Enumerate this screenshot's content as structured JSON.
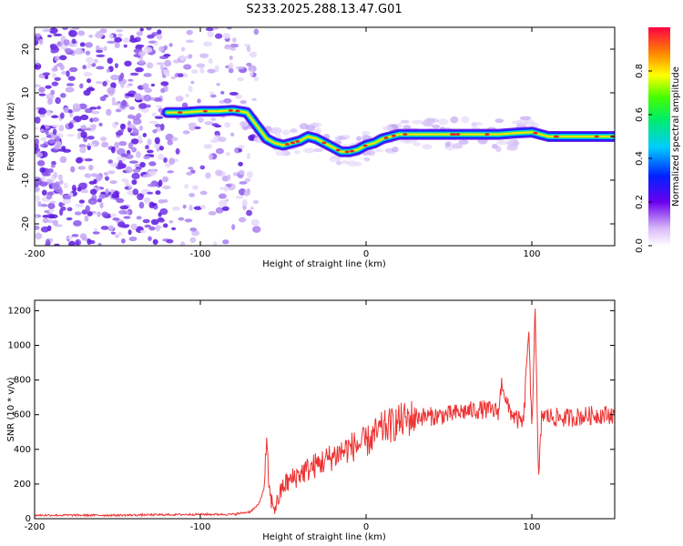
{
  "figure_title": "S233.2025.288.13.47.G01",
  "chart_data": [
    {
      "type": "heatmap",
      "title": "",
      "xlabel": "Height of straight line (km)",
      "ylabel": "Frequency (Hz)",
      "xlim": [
        -200,
        150
      ],
      "ylim": [
        -25,
        25
      ],
      "xticks": [
        -200,
        -100,
        0,
        100
      ],
      "yticks": [
        -20,
        -10,
        0,
        10,
        20
      ],
      "colorbar": {
        "label": "Normalized spectral amplitude",
        "range": [
          0,
          1
        ],
        "ticks": [
          0.0,
          0.2,
          0.4,
          0.6,
          0.8
        ]
      },
      "ridge": {
        "description": "dominant frequency track versus height",
        "height_km": [
          -120,
          -110,
          -100,
          -90,
          -80,
          -72,
          -66,
          -60,
          -55,
          -50,
          -45,
          -40,
          -35,
          -30,
          -25,
          -20,
          -15,
          -10,
          -5,
          0,
          5,
          10,
          15,
          20,
          30,
          40,
          50,
          60,
          70,
          80,
          90,
          100,
          110,
          120,
          130,
          140,
          150
        ],
        "frequency_hz": [
          5.5,
          5.5,
          5.8,
          5.8,
          6.0,
          5.5,
          2.5,
          -0.5,
          -1.5,
          -2.0,
          -1.5,
          -1.0,
          0.0,
          -0.5,
          -1.5,
          -2.5,
          -3.5,
          -3.5,
          -3.0,
          -2.0,
          -1.5,
          -0.5,
          0.0,
          0.5,
          0.5,
          0.5,
          0.5,
          0.5,
          0.5,
          0.5,
          0.8,
          1.0,
          0.0,
          0.0,
          0.0,
          0.0,
          0.0
        ]
      }
    },
    {
      "type": "line",
      "title": "",
      "xlabel": "Height of straight line (km)",
      "ylabel": "SNR (10 * v/v)",
      "xlim": [
        -200,
        150
      ],
      "ylim": [
        0,
        1260
      ],
      "xticks": [
        -200,
        -100,
        0,
        100
      ],
      "yticks": [
        0,
        200,
        400,
        600,
        800,
        1000,
        1200
      ],
      "series": [
        {
          "name": "SNR",
          "color": "#ee3333",
          "x": [
            -200,
            -150,
            -100,
            -80,
            -70,
            -65,
            -62,
            -60,
            -58,
            -55,
            -50,
            -40,
            -30,
            -20,
            -10,
            0,
            10,
            20,
            30,
            40,
            50,
            60,
            70,
            80,
            82,
            85,
            90,
            95,
            98,
            100,
            102,
            104,
            106,
            110,
            120,
            130,
            140,
            150
          ],
          "y": [
            20,
            20,
            25,
            25,
            40,
            80,
            160,
            400,
            120,
            60,
            190,
            260,
            310,
            360,
            410,
            440,
            520,
            560,
            590,
            590,
            600,
            620,
            630,
            620,
            800,
            650,
            580,
            550,
            1100,
            500,
            1250,
            200,
            600,
            590,
            580,
            590,
            600,
            600
          ]
        }
      ]
    }
  ]
}
